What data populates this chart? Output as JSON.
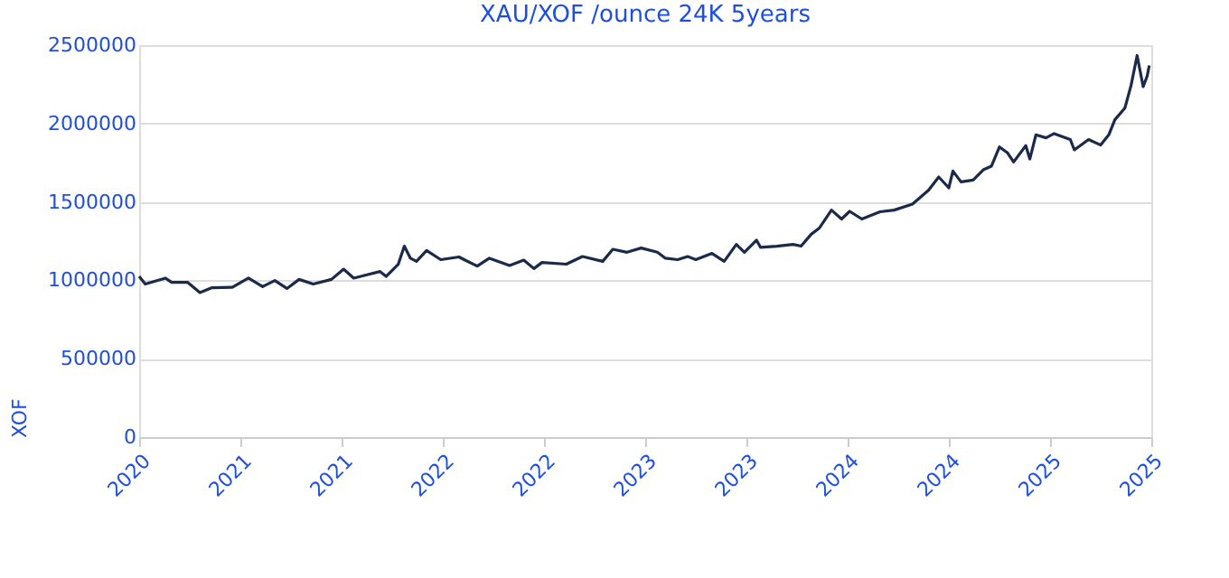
{
  "chart_data": {
    "type": "line",
    "title": "XAU/XOF /ounce 24K 5years",
    "ylabel": "XOF",
    "x": [
      2020.3,
      2020.33,
      2020.43,
      2020.46,
      2020.54,
      2020.6,
      2020.66,
      2020.76,
      2020.84,
      2020.91,
      2020.97,
      2021.03,
      2021.09,
      2021.16,
      2021.25,
      2021.31,
      2021.36,
      2021.43,
      2021.49,
      2021.52,
      2021.58,
      2021.61,
      2021.64,
      2021.67,
      2021.72,
      2021.79,
      2021.88,
      2021.91,
      2021.97,
      2022.03,
      2022.13,
      2022.2,
      2022.25,
      2022.29,
      2022.41,
      2022.49,
      2022.59,
      2022.64,
      2022.71,
      2022.78,
      2022.86,
      2022.9,
      2022.96,
      2023.01,
      2023.05,
      2023.13,
      2023.19,
      2023.25,
      2023.29,
      2023.35,
      2023.37,
      2023.45,
      2023.53,
      2023.57,
      2023.62,
      2023.66,
      2023.72,
      2023.77,
      2023.81,
      2023.87,
      2023.96,
      2024.03,
      2024.12,
      2024.2,
      2024.25,
      2024.3,
      2024.32,
      2024.36,
      2024.42,
      2024.47,
      2024.51,
      2024.55,
      2024.59,
      2024.62,
      2024.68,
      2024.7,
      2024.73,
      2024.78,
      2024.82,
      2024.9,
      2024.92,
      2024.99,
      2025.05,
      2025.09,
      2025.12,
      2025.17,
      2025.2,
      2025.23,
      2025.26,
      2025.28,
      2025.29
    ],
    "series": [
      {
        "color": "#1b2a4a",
        "values": [
          1025000,
          976000,
          1014000,
          987000,
          987000,
          922000,
          953000,
          956000,
          1014000,
          960000,
          999000,
          948000,
          1006000,
          976000,
          1006000,
          1071000,
          1014000,
          1037000,
          1056000,
          1025000,
          1103000,
          1218000,
          1141000,
          1121000,
          1190000,
          1132000,
          1149000,
          1129000,
          1091000,
          1141000,
          1095000,
          1129000,
          1075000,
          1114000,
          1103000,
          1152000,
          1121000,
          1198000,
          1179000,
          1206000,
          1179000,
          1141000,
          1132000,
          1152000,
          1132000,
          1172000,
          1121000,
          1229000,
          1179000,
          1256000,
          1210000,
          1218000,
          1229000,
          1218000,
          1294000,
          1333000,
          1448000,
          1391000,
          1440000,
          1391000,
          1437000,
          1448000,
          1486000,
          1575000,
          1659000,
          1590000,
          1697000,
          1628000,
          1640000,
          1705000,
          1728000,
          1851000,
          1813000,
          1755000,
          1859000,
          1774000,
          1928000,
          1909000,
          1936000,
          1898000,
          1832000,
          1898000,
          1863000,
          1928000,
          2024000,
          2100000,
          2243000,
          2434000,
          2235000,
          2304000,
          2370000
        ]
      }
    ],
    "xlim": [
      2020.3,
      2025.3
    ],
    "xticks": [
      {
        "value": 2020.3,
        "label": "2020"
      },
      {
        "value": 2020.8,
        "label": "2021"
      },
      {
        "value": 2021.3,
        "label": "2021"
      },
      {
        "value": 2021.8,
        "label": "2022"
      },
      {
        "value": 2022.3,
        "label": "2022"
      },
      {
        "value": 2022.8,
        "label": "2023"
      },
      {
        "value": 2023.3,
        "label": "2023"
      },
      {
        "value": 2023.8,
        "label": "2024"
      },
      {
        "value": 2024.3,
        "label": "2024"
      },
      {
        "value": 2024.8,
        "label": "2025"
      },
      {
        "value": 2025.3,
        "label": "2025"
      }
    ],
    "ylim": [
      0,
      2500000
    ],
    "yticks": [
      0,
      500000,
      1000000,
      1500000,
      2000000,
      2500000
    ],
    "grid": "y",
    "marker": "none",
    "line_style": "solid",
    "legend": false
  }
}
